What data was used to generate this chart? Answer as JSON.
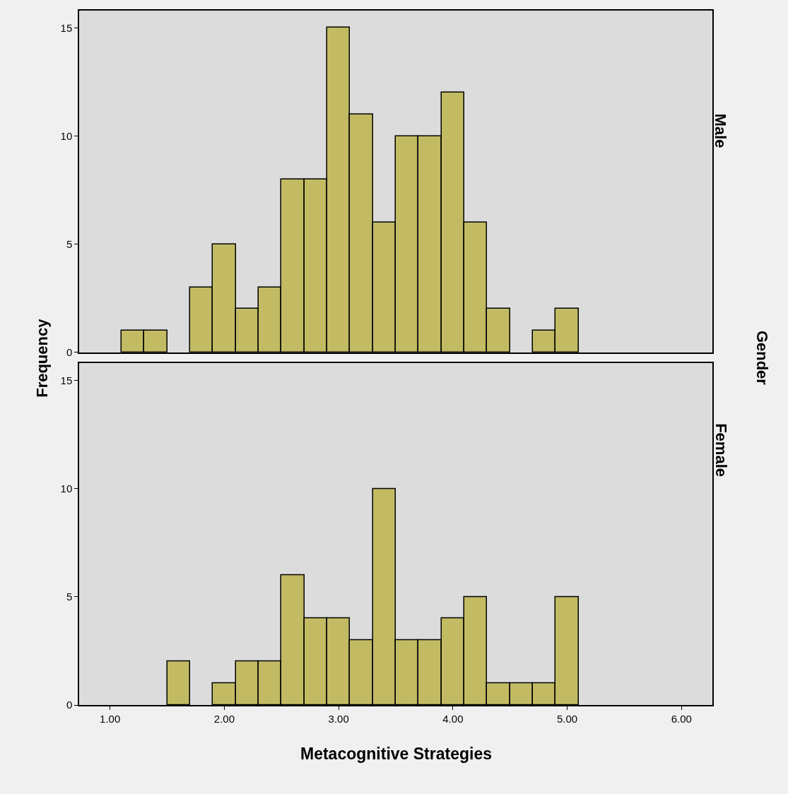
{
  "chart_data": [
    {
      "type": "histogram",
      "title": "Male",
      "ylabel": "Frequency",
      "annotations": [
        "Gender"
      ],
      "color": "#c2bb63",
      "bins": [
        1.1,
        1.3,
        1.5,
        1.7,
        1.9,
        2.1,
        2.3,
        2.5,
        2.7,
        2.9,
        3.1,
        3.3,
        3.5,
        3.7,
        3.9,
        4.1,
        4.3,
        4.5,
        4.7,
        4.9,
        5.1
      ],
      "values": [
        1,
        1,
        0,
        3,
        5,
        2,
        3,
        8,
        8,
        15,
        11,
        6,
        10,
        10,
        12,
        6,
        2,
        0,
        1,
        2
      ],
      "xlim": [
        0.73,
        6.27
      ],
      "ylim": [
        0,
        15.8
      ],
      "yticks": [
        0,
        5,
        10,
        15
      ],
      "tick_labels": "y",
      "grid": false
    },
    {
      "type": "histogram",
      "title": "Female",
      "xlabel": "Metacognitive Strategies",
      "color": "#c2bb63",
      "bins": [
        1.1,
        1.3,
        1.5,
        1.7,
        1.9,
        2.1,
        2.3,
        2.5,
        2.7,
        2.9,
        3.1,
        3.3,
        3.5,
        3.7,
        3.9,
        4.1,
        4.3,
        4.5,
        4.7,
        4.9,
        5.1
      ],
      "values": [
        0,
        0,
        2,
        0,
        1,
        2,
        2,
        6,
        4,
        4,
        3,
        10,
        3,
        3,
        4,
        5,
        1,
        1,
        1,
        5
      ],
      "xlim": [
        0.73,
        6.27
      ],
      "xticks": [
        {
          "value": 1,
          "label": "1.00"
        },
        {
          "value": 2,
          "label": "2.00"
        },
        {
          "value": 3,
          "label": "3.00"
        },
        {
          "value": 4,
          "label": "4.00"
        },
        {
          "value": 5,
          "label": "5.00"
        },
        {
          "value": 6,
          "label": "6.00"
        }
      ],
      "ylim": [
        0,
        15.8
      ],
      "yticks": [
        0,
        5,
        10,
        15
      ],
      "grid": false
    }
  ]
}
